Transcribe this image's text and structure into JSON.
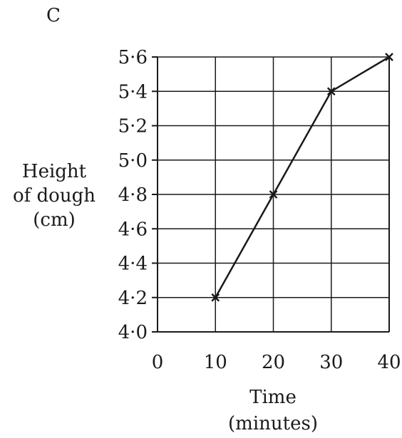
{
  "chart_data": {
    "type": "line",
    "panel_label": "C",
    "xlabel_lines": [
      "Time",
      "(minutes)"
    ],
    "ylabel_lines": [
      "Height",
      "of dough",
      "(cm)"
    ],
    "x_ticks": [
      0,
      10,
      20,
      30,
      40
    ],
    "x_tick_labels": [
      "0",
      "10",
      "20",
      "30",
      "40"
    ],
    "y_ticks": [
      4.0,
      4.2,
      4.4,
      4.6,
      4.8,
      5.0,
      5.2,
      5.4,
      5.6
    ],
    "y_tick_labels": [
      "4·0",
      "4·2",
      "4·4",
      "4·6",
      "4·8",
      "5·0",
      "5·2",
      "5·4",
      "5·6"
    ],
    "xlim": [
      0,
      40
    ],
    "ylim": [
      4.0,
      5.6
    ],
    "grid": true,
    "marker": "x",
    "series": [
      {
        "x": [
          10,
          20,
          30,
          40
        ],
        "y": [
          4.2,
          4.8,
          5.4,
          5.6
        ]
      }
    ]
  }
}
